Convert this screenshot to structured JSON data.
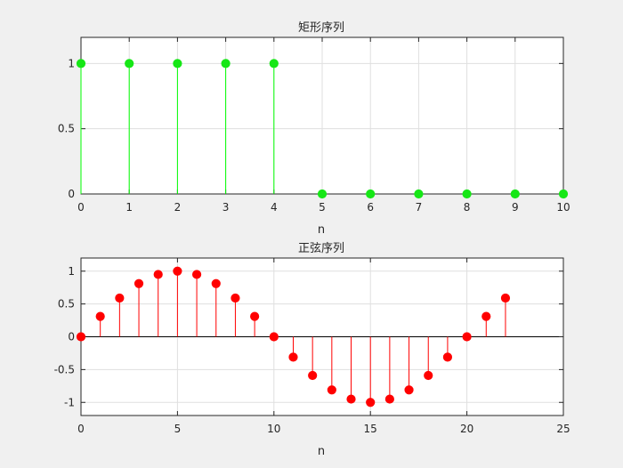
{
  "chart_data": [
    {
      "type": "stem",
      "title": "矩形序列",
      "xlabel": "n",
      "ylabel": "",
      "xlim": [
        0,
        10
      ],
      "ylim": [
        0,
        1.2
      ],
      "xticks": [
        0,
        1,
        2,
        3,
        4,
        5,
        6,
        7,
        8,
        9,
        10
      ],
      "yticks": [
        0,
        0.5,
        1
      ],
      "x": [
        0,
        1,
        2,
        3,
        4,
        5,
        6,
        7,
        8,
        9,
        10
      ],
      "values": [
        1,
        1,
        1,
        1,
        1,
        0,
        0,
        0,
        0,
        0,
        0
      ],
      "color": "#00ff00",
      "marker_color": "#16e716",
      "grid": true
    },
    {
      "type": "stem",
      "title": "正弦序列",
      "xlabel": "n",
      "ylabel": "",
      "xlim": [
        0,
        25
      ],
      "ylim": [
        -1.2,
        1.2
      ],
      "xticks": [
        0,
        5,
        10,
        15,
        20,
        25
      ],
      "yticks": [
        -1,
        -0.5,
        0,
        0.5,
        1
      ],
      "x": [
        0,
        1,
        2,
        3,
        4,
        5,
        6,
        7,
        8,
        9,
        10,
        11,
        12,
        13,
        14,
        15,
        16,
        17,
        18,
        19,
        20,
        21,
        22
      ],
      "values": [
        0,
        0.31,
        0.59,
        0.81,
        0.95,
        1.0,
        0.95,
        0.81,
        0.59,
        0.31,
        0,
        -0.31,
        -0.59,
        -0.81,
        -0.95,
        -1.0,
        -0.95,
        -0.81,
        -0.59,
        -0.31,
        0,
        0.31,
        0.59
      ],
      "color": "#ff0000",
      "marker_color": "#ff0000",
      "grid": true
    }
  ]
}
